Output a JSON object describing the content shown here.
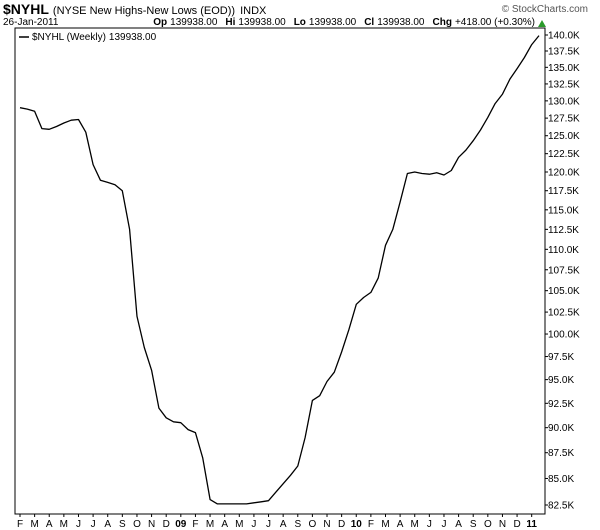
{
  "chart_data": {
    "type": "line",
    "title": "$NYHL",
    "subtitle": "(NYSE New Highs-New Lows (EOD))",
    "exchange": "INDX",
    "date": "26-Jan-2011",
    "quote": [
      {
        "label": "Op",
        "value": "139938.00"
      },
      {
        "label": "Hi",
        "value": "139938.00"
      },
      {
        "label": "Lo",
        "value": "139938.00"
      },
      {
        "label": "Cl",
        "value": "139938.00"
      },
      {
        "label": "Chg",
        "value": "+418.00 (+0.30%)"
      }
    ],
    "credit": "© StockCharts.com",
    "legend_value": "139938.00",
    "log_scale": true,
    "grid": false,
    "categories": [
      "F",
      null,
      "M",
      null,
      "A",
      null,
      "M",
      null,
      "J",
      null,
      "J",
      null,
      "A",
      null,
      "S",
      null,
      "O",
      null,
      "N",
      null,
      "D",
      null,
      "09",
      null,
      "F",
      null,
      "M",
      null,
      "A",
      null,
      "M",
      null,
      "J",
      null,
      "J",
      null,
      "A",
      null,
      "S",
      null,
      "O",
      null,
      "N",
      null,
      "D",
      null,
      "10",
      null,
      "F",
      null,
      "M",
      null,
      "A",
      null,
      "M",
      null,
      "J",
      null,
      "J",
      null,
      "A",
      null,
      "S",
      null,
      "O",
      null,
      "N",
      null,
      "D",
      null,
      "11",
      null
    ],
    "series": [
      {
        "name": "$NYHL (Weekly)",
        "color": "#000000",
        "values": [
          129000,
          128800,
          128500,
          126000,
          125900,
          126300,
          126800,
          127200,
          127300,
          125500,
          121000,
          118900,
          118600,
          118300,
          117500,
          112500,
          102000,
          98500,
          96000,
          92000,
          91000,
          90600,
          90500,
          89800,
          89500,
          87000,
          83000,
          82600,
          82600,
          82600,
          82600,
          82600,
          82700,
          82800,
          82900,
          83700,
          84500,
          85300,
          86200,
          89000,
          92800,
          93300,
          94800,
          95800,
          98000,
          100500,
          103400,
          104200,
          104800,
          106500,
          110500,
          112500,
          116000,
          119800,
          120000,
          119800,
          119700,
          119900,
          119600,
          120200,
          122000,
          123000,
          124300,
          125800,
          127600,
          129600,
          131000,
          133200,
          134800,
          136500,
          138500,
          139900
        ]
      }
    ],
    "ylim": [
      82500,
      140000
    ],
    "yticks": [
      {
        "value": 82500,
        "label": "82.5K"
      },
      {
        "value": 85000,
        "label": "85.0K"
      },
      {
        "value": 87500,
        "label": "87.5K"
      },
      {
        "value": 90000,
        "label": "90.0K"
      },
      {
        "value": 92500,
        "label": "92.5K"
      },
      {
        "value": 95000,
        "label": "95.0K"
      },
      {
        "value": 97500,
        "label": "97.5K"
      },
      {
        "value": 100000,
        "label": "100.0K"
      },
      {
        "value": 102500,
        "label": "102.5K"
      },
      {
        "value": 105000,
        "label": "105.0K"
      },
      {
        "value": 107500,
        "label": "107.5K"
      },
      {
        "value": 110000,
        "label": "110.0K"
      },
      {
        "value": 112500,
        "label": "112.5K"
      },
      {
        "value": 115000,
        "label": "115.0K"
      },
      {
        "value": 117500,
        "label": "117.5K"
      },
      {
        "value": 120000,
        "label": "120.0K"
      },
      {
        "value": 122500,
        "label": "122.5K"
      },
      {
        "value": 125000,
        "label": "125.0K"
      },
      {
        "value": 127500,
        "label": "127.5K"
      },
      {
        "value": 130000,
        "label": "130.0K"
      },
      {
        "value": 132500,
        "label": "132.5K"
      },
      {
        "value": 135000,
        "label": "135.0K"
      },
      {
        "value": 137500,
        "label": "137.5K"
      },
      {
        "value": 140000,
        "label": "140.0K"
      }
    ]
  }
}
